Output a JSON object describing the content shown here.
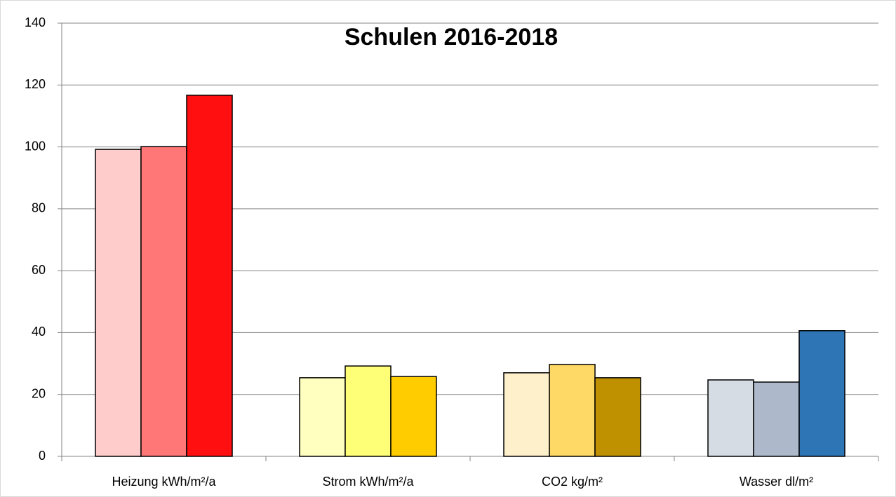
{
  "chart_data": {
    "type": "bar",
    "title": "Schulen 2016-2018",
    "categories": [
      "Heizung kWh/m²/a",
      "Strom kWh/m²/a",
      "CO2 kg/m²",
      "Wasser dl/m²"
    ],
    "series": [
      {
        "colors": [
          "#ffcccc",
          "#ffffc0",
          "#fff0cc",
          "#d6dce4"
        ],
        "values": [
          99.2,
          25.4,
          27.0,
          24.7
        ]
      },
      {
        "colors": [
          "#ff7777",
          "#ffff77",
          "#ffd966",
          "#adb9ca"
        ],
        "values": [
          100.1,
          29.2,
          29.7,
          24.0
        ]
      },
      {
        "colors": [
          "#ff0f0f",
          "#ffcc00",
          "#bf9000",
          "#2e75b6"
        ],
        "values": [
          116.7,
          25.8,
          25.4,
          40.6
        ]
      }
    ],
    "ylim": [
      0,
      140
    ],
    "yticks": [
      0,
      20,
      40,
      60,
      80,
      100,
      120,
      140
    ],
    "grid": true
  }
}
